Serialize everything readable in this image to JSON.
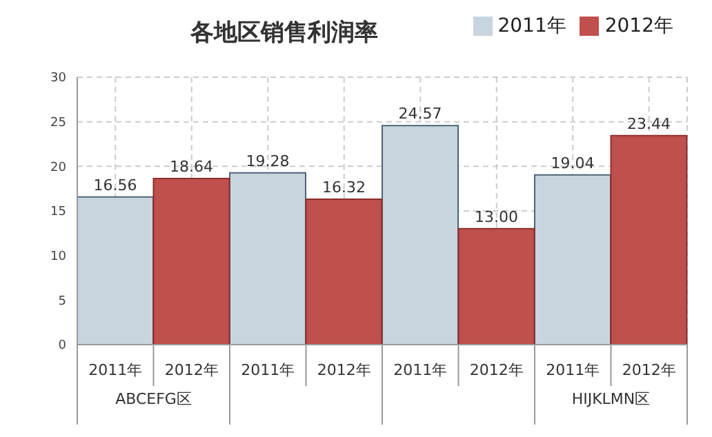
{
  "chart_data": {
    "type": "bar",
    "title": "各地区销售利润率",
    "categories": [
      "2011年",
      "2012年",
      "2011年",
      "2012年",
      "2011年",
      "2012年",
      "2011年",
      "2012年"
    ],
    "series": [
      {
        "name": "2011年",
        "color": "#c9d5de",
        "values": [
          16.56,
          null,
          19.28,
          null,
          24.57,
          null,
          19.04,
          null
        ],
        "value_labels": [
          "16.56",
          null,
          "19.28",
          null,
          "24.57",
          null,
          "19.04",
          null
        ]
      },
      {
        "name": "2012年",
        "color": "#c0504d",
        "values": [
          null,
          18.64,
          null,
          16.32,
          null,
          13.0,
          null,
          23.44
        ],
        "value_labels": [
          null,
          "18.64",
          null,
          "16.32",
          null,
          "13.00",
          null,
          "23.44"
        ]
      }
    ],
    "stacked": true,
    "ylim": [
      0,
      30
    ],
    "yticks": [
      0,
      5,
      10,
      15,
      20,
      25,
      30
    ],
    "grid": true,
    "legend": "top right",
    "annotations": [
      "ABCEFG区",
      "HIJKLMN区"
    ]
  }
}
